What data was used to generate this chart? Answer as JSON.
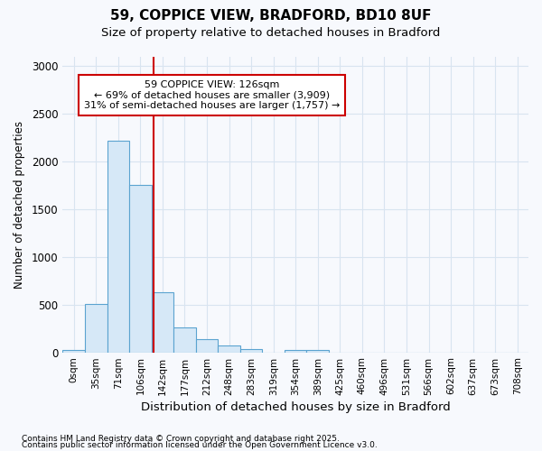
{
  "title1": "59, COPPICE VIEW, BRADFORD, BD10 8UF",
  "title2": "Size of property relative to detached houses in Bradford",
  "xlabel": "Distribution of detached houses by size in Bradford",
  "ylabel": "Number of detached properties",
  "categories": [
    "0sqm",
    "35sqm",
    "71sqm",
    "106sqm",
    "142sqm",
    "177sqm",
    "212sqm",
    "248sqm",
    "283sqm",
    "319sqm",
    "354sqm",
    "389sqm",
    "425sqm",
    "460sqm",
    "496sqm",
    "531sqm",
    "566sqm",
    "602sqm",
    "637sqm",
    "673sqm",
    "708sqm"
  ],
  "values": [
    20,
    510,
    2220,
    1750,
    630,
    260,
    140,
    70,
    30,
    0,
    20,
    20,
    0,
    0,
    0,
    0,
    0,
    0,
    0,
    0,
    0
  ],
  "bar_color": "#d6e8f7",
  "bar_edge_color": "#5ba3d0",
  "vline_x": 3.6,
  "vline_color": "#cc0000",
  "annotation_text": "59 COPPICE VIEW: 126sqm\n← 69% of detached houses are smaller (3,909)\n31% of semi-detached houses are larger (1,757) →",
  "annotation_box_color": "#ffffff",
  "annotation_box_edge": "#cc0000",
  "ylim": [
    0,
    3100
  ],
  "yticks": [
    0,
    500,
    1000,
    1500,
    2000,
    2500,
    3000
  ],
  "footer1": "Contains HM Land Registry data © Crown copyright and database right 2025.",
  "footer2": "Contains public sector information licensed under the Open Government Licence v3.0.",
  "background_color": "#f7f9fd",
  "plot_background": "#f7f9fd",
  "grid_color": "#d8e4f0"
}
